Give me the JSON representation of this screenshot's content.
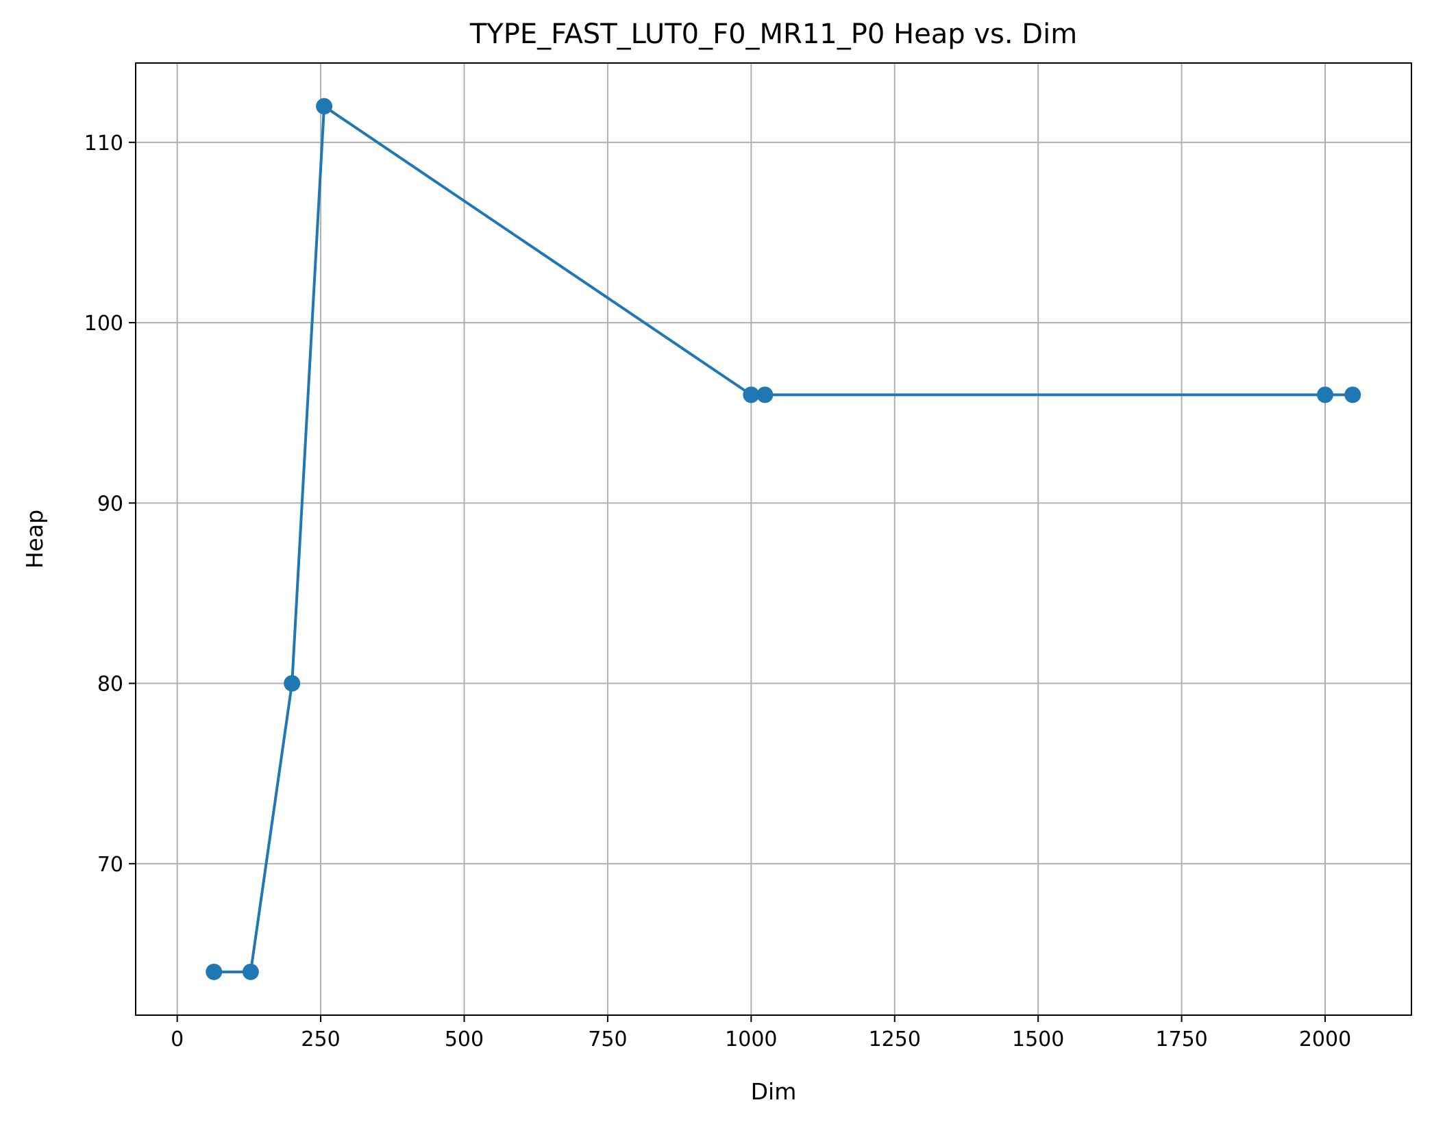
{
  "chart_data": {
    "type": "line",
    "title": "TYPE_FAST_LUT0_F0_MR11_P0 Heap vs. Dim",
    "xlabel": "Dim",
    "ylabel": "Heap",
    "xlim": [
      -72.4,
      2150.4
    ],
    "ylim": [
      61.6,
      114.4
    ],
    "xticks": [
      0,
      250,
      500,
      750,
      1000,
      1250,
      1500,
      1750,
      2000
    ],
    "xtick_labels": [
      "0",
      "250",
      "500",
      "750",
      "1000",
      "1250",
      "1500",
      "1750",
      "2000"
    ],
    "yticks": [
      70,
      80,
      90,
      100,
      110
    ],
    "ytick_labels": [
      "70",
      "80",
      "90",
      "100",
      "110"
    ],
    "grid": true,
    "legend": "none",
    "series": [
      {
        "color": "#1f77b4",
        "marker": "circle",
        "x": [
          64,
          128,
          200,
          256,
          1000,
          1024,
          2000,
          2048
        ],
        "y": [
          64,
          64,
          80,
          112,
          96,
          96,
          96,
          96
        ]
      }
    ]
  }
}
